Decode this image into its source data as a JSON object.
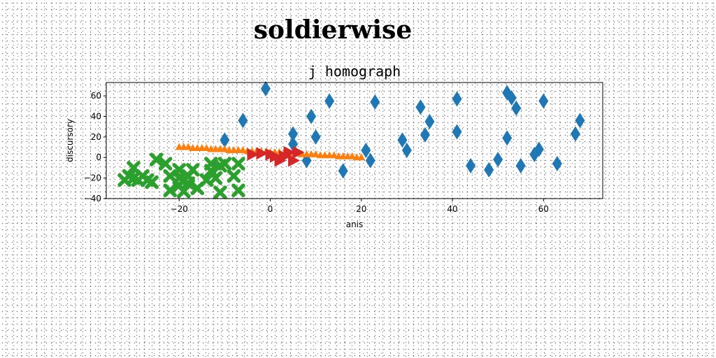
{
  "page_title": "soldierwise",
  "chart_data": {
    "type": "scatter",
    "title": "j homograph",
    "xlabel": "anis",
    "ylabel": "discursory",
    "xlim": [
      -36,
      73
    ],
    "ylim": [
      -40,
      73
    ],
    "xticks": [
      -20,
      0,
      20,
      40,
      60
    ],
    "yticks": [
      -40,
      -20,
      0,
      20,
      40,
      60
    ],
    "grid": false,
    "series": [
      {
        "marker": "diamond",
        "color": "#1f77b4",
        "points": [
          [
            -1,
            67
          ],
          [
            -6,
            36
          ],
          [
            -10,
            17
          ],
          [
            -12,
            -8
          ],
          [
            5,
            23
          ],
          [
            5,
            13
          ],
          [
            8,
            -3
          ],
          [
            9,
            40
          ],
          [
            10,
            20
          ],
          [
            13,
            55
          ],
          [
            16,
            -13
          ],
          [
            21,
            7
          ],
          [
            22,
            -3
          ],
          [
            23,
            54
          ],
          [
            29,
            17
          ],
          [
            30,
            7
          ],
          [
            33,
            49
          ],
          [
            34,
            22
          ],
          [
            35,
            35
          ],
          [
            41,
            57
          ],
          [
            41,
            25
          ],
          [
            44,
            -8
          ],
          [
            48,
            -12
          ],
          [
            50,
            -2
          ],
          [
            52,
            19
          ],
          [
            52,
            63
          ],
          [
            53,
            58
          ],
          [
            54,
            48
          ],
          [
            55,
            -8
          ],
          [
            58,
            3
          ],
          [
            59,
            8
          ],
          [
            60,
            55
          ],
          [
            63,
            -6
          ],
          [
            67,
            23
          ],
          [
            68,
            36
          ]
        ]
      },
      {
        "marker": "triangle-up",
        "color": "#ff7f0e",
        "points": [
          [
            -20,
            10
          ],
          [
            -19,
            10
          ],
          [
            -18,
            10
          ],
          [
            -17,
            9
          ],
          [
            -16,
            9
          ],
          [
            -15,
            9
          ],
          [
            -14,
            9
          ],
          [
            -13,
            8
          ],
          [
            -12,
            8
          ],
          [
            -11,
            8
          ],
          [
            -10,
            8
          ],
          [
            -9,
            7
          ],
          [
            -8,
            7
          ],
          [
            -7,
            7
          ],
          [
            -6,
            7
          ],
          [
            -5,
            6
          ],
          [
            -4,
            6
          ],
          [
            -3,
            6
          ],
          [
            -2,
            6
          ],
          [
            -1,
            5
          ],
          [
            0,
            5
          ],
          [
            1,
            5
          ],
          [
            2,
            5
          ],
          [
            3,
            4
          ],
          [
            4,
            4
          ],
          [
            5,
            4
          ],
          [
            6,
            4
          ],
          [
            7,
            3
          ],
          [
            8,
            3
          ],
          [
            9,
            3
          ],
          [
            10,
            3
          ],
          [
            11,
            2
          ],
          [
            12,
            2
          ],
          [
            13,
            2
          ],
          [
            14,
            2
          ],
          [
            15,
            1
          ],
          [
            16,
            1
          ],
          [
            17,
            1
          ],
          [
            18,
            1
          ],
          [
            19,
            0
          ],
          [
            20,
            0
          ]
        ]
      },
      {
        "marker": "x",
        "color": "#2ca02c",
        "points": [
          [
            -32,
            -22
          ],
          [
            -31,
            -18
          ],
          [
            -30,
            -10
          ],
          [
            -30,
            -20
          ],
          [
            -29,
            -22
          ],
          [
            -28,
            -18
          ],
          [
            -27,
            -22
          ],
          [
            -26,
            -24
          ],
          [
            -25,
            -2
          ],
          [
            -23,
            -6
          ],
          [
            -22,
            -18
          ],
          [
            -22,
            -32
          ],
          [
            -20,
            -12
          ],
          [
            -20,
            -20
          ],
          [
            -20,
            -27
          ],
          [
            -19,
            -33
          ],
          [
            -19,
            -22
          ],
          [
            -18,
            -18
          ],
          [
            -18,
            -25
          ],
          [
            -17,
            -12
          ],
          [
            -16,
            -30
          ],
          [
            -14,
            -22
          ],
          [
            -13,
            -6
          ],
          [
            -13,
            -13
          ],
          [
            -12,
            -20
          ],
          [
            -11,
            -34
          ],
          [
            -11,
            -8
          ],
          [
            -10,
            -6
          ],
          [
            -8,
            -18
          ],
          [
            -7,
            -6
          ],
          [
            -7,
            -32
          ]
        ]
      },
      {
        "marker": "triangle-right",
        "color": "#d62728",
        "points": [
          [
            -4,
            3
          ],
          [
            -2,
            4
          ],
          [
            0,
            3
          ],
          [
            1,
            1
          ],
          [
            2,
            -3
          ],
          [
            3,
            1
          ],
          [
            4,
            5
          ],
          [
            5,
            -3
          ],
          [
            6,
            5
          ]
        ]
      }
    ]
  }
}
